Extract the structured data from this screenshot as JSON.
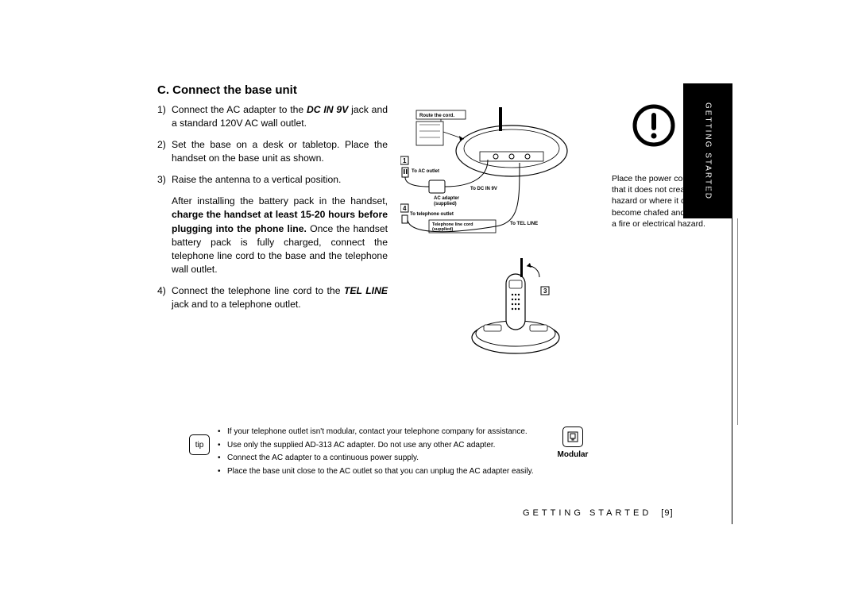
{
  "section_tab": "GETTING STARTED",
  "heading": "C. Connect the base unit",
  "steps": [
    {
      "n": "1)",
      "html": "Connect the AC adapter to the <b><i>DC IN 9V</i></b> jack and a standard 120V AC wall outlet."
    },
    {
      "n": "2)",
      "html": "Set the base on a desk or tabletop. Place the handset on the base unit as shown."
    },
    {
      "n": "3)",
      "html": "Raise the antenna to a vertical position."
    }
  ],
  "mid_paragraph": "After installing the battery pack in the handset, <b>charge the handset at least 15-20 hours before plugging into the phone line.</b> Once the handset battery pack is fully charged, connect the telephone line cord to the base and the telephone wall outlet.",
  "step4": {
    "n": "4)",
    "html": "Connect the telephone line cord to the <b><i>TEL LINE</i></b> jack and to a telephone outlet."
  },
  "diagram_labels": {
    "route": "Route the cord.",
    "num1": "1",
    "to_ac": "To AC outlet",
    "to_dc": "To DC IN 9V",
    "ac_adapter": "AC adapter\n(supplied)",
    "num4": "4",
    "to_tel_outlet": "To telephone outlet",
    "tel_line_cord": "Telephone line cord\n(supplied)",
    "to_tel_line": "To TEL LINE",
    "num3": "3"
  },
  "tip_label": "tip",
  "tips": [
    "If your telephone outlet isn't modular, contact your telephone company for assistance.",
    "Use only the supplied AD-313 AC adapter. Do not use any other AC adapter.",
    "Connect the AC adapter to a continuous power supply.",
    "Place the base unit close to the AC outlet so that you can unplug the AC adapter easily."
  ],
  "modular_label": "Modular",
  "footer_section": "GETTING STARTED",
  "footer_page": "[9]",
  "warning_text": "Place the power cord so that it does not create a trip hazard or where it could become chafed and create a fire or electrical hazard.",
  "colors": {
    "black": "#000000",
    "white": "#ffffff"
  }
}
